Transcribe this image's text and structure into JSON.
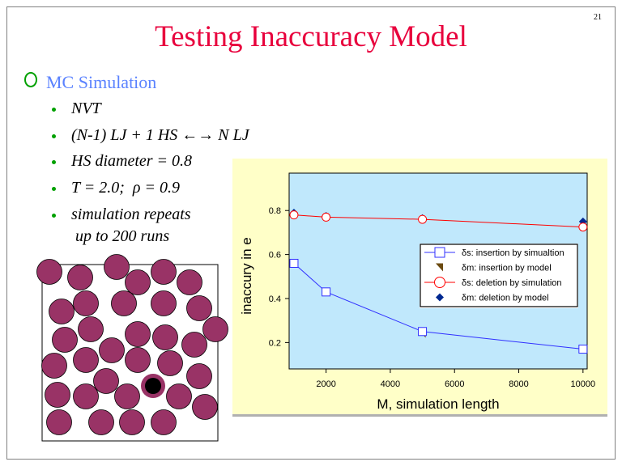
{
  "slide": {
    "page_number": "21",
    "title": "Testing Inaccuracy Model",
    "section": "MC Simulation",
    "bullets": [
      "NVT",
      "(N-1) LJ + 1 HS ←→ N LJ",
      "HS diameter = 0.8",
      "T = 2.0;  ρ = 0.9",
      "simulation repeats",
      " up to 200 runs"
    ]
  },
  "colors": {
    "title": "#e8003c",
    "section": "#5a82ff",
    "bullet": "#00a000",
    "particle": "#993366",
    "panel": "#ffffc8",
    "plot": "#c0e8fc",
    "ins_sim": "#3030ff",
    "ins_model": "#6b4a10",
    "del_sim": "#ff0000",
    "del_model": "#002890"
  },
  "chart_data": {
    "type": "line",
    "title": "",
    "xlabel": "M, simulation length",
    "ylabel": "inaccury in e",
    "xlim": [
      850,
      10130
    ],
    "ylim": [
      0.08,
      0.97
    ],
    "xticks": [
      2000,
      4000,
      6000,
      8000,
      10000
    ],
    "yticks": [
      0.2,
      0.4,
      0.6,
      0.8
    ],
    "xtick_labels": [
      "2000",
      "4000",
      "6000",
      "8000",
      "10000"
    ],
    "ytick_labels": [
      "0.2",
      "0.4",
      "0.6",
      "0.8"
    ],
    "grid": false,
    "legend_position": "center-right",
    "x": [
      1000,
      2000,
      5000,
      10000
    ],
    "series": [
      {
        "name": "δs: insertion by simualtion",
        "values": [
          0.56,
          0.43,
          0.25,
          0.17
        ],
        "marker": "square",
        "line": true
      },
      {
        "name": "δm: insertion by model",
        "values": [
          0.56,
          0.43,
          0.24,
          0.17
        ],
        "marker": "triangle",
        "line": false
      },
      {
        "name": "δs: deletion by simulation",
        "values": [
          0.78,
          0.77,
          0.76,
          0.725
        ],
        "marker": "circle",
        "line": true
      },
      {
        "name": "δm: deletion by model",
        "values": [
          0.79,
          0.775,
          0.765,
          0.75
        ],
        "marker": "diamond",
        "line": false
      }
    ]
  }
}
